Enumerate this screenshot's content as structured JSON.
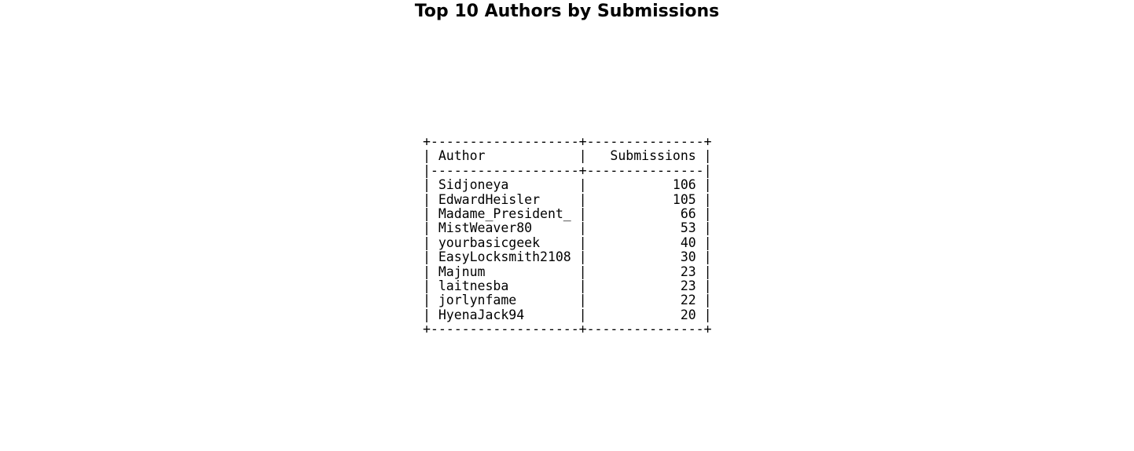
{
  "chart_data": {
    "type": "table",
    "title": "Top 10 Authors by Submissions",
    "columns": [
      "Author",
      "Submissions"
    ],
    "rows": [
      [
        "Sidjoneya",
        106
      ],
      [
        "EdwardHeisler",
        105
      ],
      [
        "Madame_President_",
        66
      ],
      [
        "MistWeaver80",
        53
      ],
      [
        "yourbasicgeek",
        40
      ],
      [
        "EasyLocksmith2108",
        30
      ],
      [
        "Majnum",
        23
      ],
      [
        "laitnesba",
        23
      ],
      [
        "jorlynfame",
        22
      ],
      [
        "HyenaJack94",
        20
      ]
    ]
  }
}
